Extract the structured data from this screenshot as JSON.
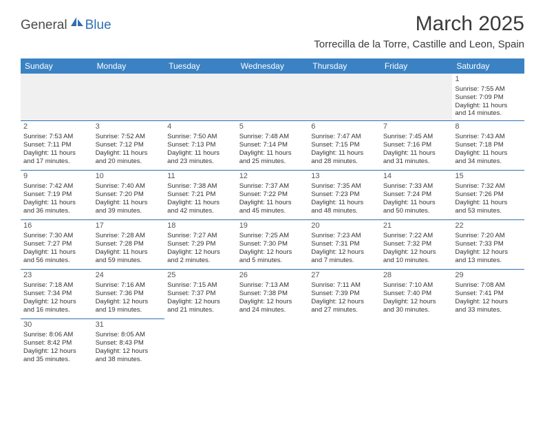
{
  "logo": {
    "part1": "General",
    "part2": "Blue"
  },
  "title": "March 2025",
  "location": "Torrecilla de la Torre, Castille and Leon, Spain",
  "colors": {
    "header_bg": "#3b82c4",
    "header_text": "#ffffff",
    "border": "#2f6fb0",
    "blank_bg": "#f0f0f0",
    "text": "#333333",
    "logo_gray": "#4a4a4a",
    "logo_blue": "#2f6fb0"
  },
  "weekdays": [
    "Sunday",
    "Monday",
    "Tuesday",
    "Wednesday",
    "Thursday",
    "Friday",
    "Saturday"
  ],
  "weeks": [
    [
      null,
      null,
      null,
      null,
      null,
      null,
      {
        "day": "1",
        "sunrise": "Sunrise: 7:55 AM",
        "sunset": "Sunset: 7:09 PM",
        "daylight1": "Daylight: 11 hours",
        "daylight2": "and 14 minutes."
      }
    ],
    [
      {
        "day": "2",
        "sunrise": "Sunrise: 7:53 AM",
        "sunset": "Sunset: 7:11 PM",
        "daylight1": "Daylight: 11 hours",
        "daylight2": "and 17 minutes."
      },
      {
        "day": "3",
        "sunrise": "Sunrise: 7:52 AM",
        "sunset": "Sunset: 7:12 PM",
        "daylight1": "Daylight: 11 hours",
        "daylight2": "and 20 minutes."
      },
      {
        "day": "4",
        "sunrise": "Sunrise: 7:50 AM",
        "sunset": "Sunset: 7:13 PM",
        "daylight1": "Daylight: 11 hours",
        "daylight2": "and 23 minutes."
      },
      {
        "day": "5",
        "sunrise": "Sunrise: 7:48 AM",
        "sunset": "Sunset: 7:14 PM",
        "daylight1": "Daylight: 11 hours",
        "daylight2": "and 25 minutes."
      },
      {
        "day": "6",
        "sunrise": "Sunrise: 7:47 AM",
        "sunset": "Sunset: 7:15 PM",
        "daylight1": "Daylight: 11 hours",
        "daylight2": "and 28 minutes."
      },
      {
        "day": "7",
        "sunrise": "Sunrise: 7:45 AM",
        "sunset": "Sunset: 7:16 PM",
        "daylight1": "Daylight: 11 hours",
        "daylight2": "and 31 minutes."
      },
      {
        "day": "8",
        "sunrise": "Sunrise: 7:43 AM",
        "sunset": "Sunset: 7:18 PM",
        "daylight1": "Daylight: 11 hours",
        "daylight2": "and 34 minutes."
      }
    ],
    [
      {
        "day": "9",
        "sunrise": "Sunrise: 7:42 AM",
        "sunset": "Sunset: 7:19 PM",
        "daylight1": "Daylight: 11 hours",
        "daylight2": "and 36 minutes."
      },
      {
        "day": "10",
        "sunrise": "Sunrise: 7:40 AM",
        "sunset": "Sunset: 7:20 PM",
        "daylight1": "Daylight: 11 hours",
        "daylight2": "and 39 minutes."
      },
      {
        "day": "11",
        "sunrise": "Sunrise: 7:38 AM",
        "sunset": "Sunset: 7:21 PM",
        "daylight1": "Daylight: 11 hours",
        "daylight2": "and 42 minutes."
      },
      {
        "day": "12",
        "sunrise": "Sunrise: 7:37 AM",
        "sunset": "Sunset: 7:22 PM",
        "daylight1": "Daylight: 11 hours",
        "daylight2": "and 45 minutes."
      },
      {
        "day": "13",
        "sunrise": "Sunrise: 7:35 AM",
        "sunset": "Sunset: 7:23 PM",
        "daylight1": "Daylight: 11 hours",
        "daylight2": "and 48 minutes."
      },
      {
        "day": "14",
        "sunrise": "Sunrise: 7:33 AM",
        "sunset": "Sunset: 7:24 PM",
        "daylight1": "Daylight: 11 hours",
        "daylight2": "and 50 minutes."
      },
      {
        "day": "15",
        "sunrise": "Sunrise: 7:32 AM",
        "sunset": "Sunset: 7:26 PM",
        "daylight1": "Daylight: 11 hours",
        "daylight2": "and 53 minutes."
      }
    ],
    [
      {
        "day": "16",
        "sunrise": "Sunrise: 7:30 AM",
        "sunset": "Sunset: 7:27 PM",
        "daylight1": "Daylight: 11 hours",
        "daylight2": "and 56 minutes."
      },
      {
        "day": "17",
        "sunrise": "Sunrise: 7:28 AM",
        "sunset": "Sunset: 7:28 PM",
        "daylight1": "Daylight: 11 hours",
        "daylight2": "and 59 minutes."
      },
      {
        "day": "18",
        "sunrise": "Sunrise: 7:27 AM",
        "sunset": "Sunset: 7:29 PM",
        "daylight1": "Daylight: 12 hours",
        "daylight2": "and 2 minutes."
      },
      {
        "day": "19",
        "sunrise": "Sunrise: 7:25 AM",
        "sunset": "Sunset: 7:30 PM",
        "daylight1": "Daylight: 12 hours",
        "daylight2": "and 5 minutes."
      },
      {
        "day": "20",
        "sunrise": "Sunrise: 7:23 AM",
        "sunset": "Sunset: 7:31 PM",
        "daylight1": "Daylight: 12 hours",
        "daylight2": "and 7 minutes."
      },
      {
        "day": "21",
        "sunrise": "Sunrise: 7:22 AM",
        "sunset": "Sunset: 7:32 PM",
        "daylight1": "Daylight: 12 hours",
        "daylight2": "and 10 minutes."
      },
      {
        "day": "22",
        "sunrise": "Sunrise: 7:20 AM",
        "sunset": "Sunset: 7:33 PM",
        "daylight1": "Daylight: 12 hours",
        "daylight2": "and 13 minutes."
      }
    ],
    [
      {
        "day": "23",
        "sunrise": "Sunrise: 7:18 AM",
        "sunset": "Sunset: 7:34 PM",
        "daylight1": "Daylight: 12 hours",
        "daylight2": "and 16 minutes."
      },
      {
        "day": "24",
        "sunrise": "Sunrise: 7:16 AM",
        "sunset": "Sunset: 7:36 PM",
        "daylight1": "Daylight: 12 hours",
        "daylight2": "and 19 minutes."
      },
      {
        "day": "25",
        "sunrise": "Sunrise: 7:15 AM",
        "sunset": "Sunset: 7:37 PM",
        "daylight1": "Daylight: 12 hours",
        "daylight2": "and 21 minutes."
      },
      {
        "day": "26",
        "sunrise": "Sunrise: 7:13 AM",
        "sunset": "Sunset: 7:38 PM",
        "daylight1": "Daylight: 12 hours",
        "daylight2": "and 24 minutes."
      },
      {
        "day": "27",
        "sunrise": "Sunrise: 7:11 AM",
        "sunset": "Sunset: 7:39 PM",
        "daylight1": "Daylight: 12 hours",
        "daylight2": "and 27 minutes."
      },
      {
        "day": "28",
        "sunrise": "Sunrise: 7:10 AM",
        "sunset": "Sunset: 7:40 PM",
        "daylight1": "Daylight: 12 hours",
        "daylight2": "and 30 minutes."
      },
      {
        "day": "29",
        "sunrise": "Sunrise: 7:08 AM",
        "sunset": "Sunset: 7:41 PM",
        "daylight1": "Daylight: 12 hours",
        "daylight2": "and 33 minutes."
      }
    ],
    [
      {
        "day": "30",
        "sunrise": "Sunrise: 8:06 AM",
        "sunset": "Sunset: 8:42 PM",
        "daylight1": "Daylight: 12 hours",
        "daylight2": "and 35 minutes."
      },
      {
        "day": "31",
        "sunrise": "Sunrise: 8:05 AM",
        "sunset": "Sunset: 8:43 PM",
        "daylight1": "Daylight: 12 hours",
        "daylight2": "and 38 minutes."
      },
      null,
      null,
      null,
      null,
      null
    ]
  ]
}
